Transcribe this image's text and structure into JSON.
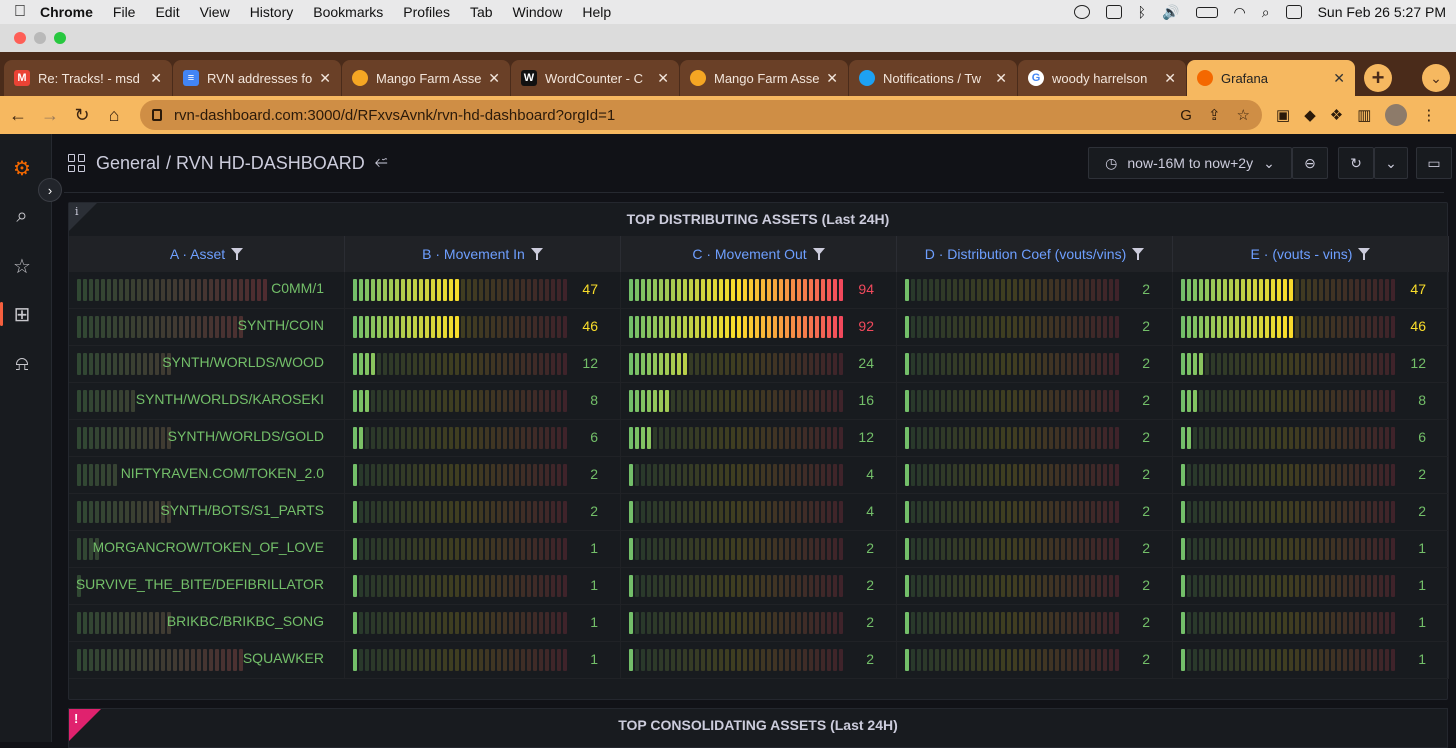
{
  "menubar": {
    "app": "Chrome",
    "items": [
      "File",
      "Edit",
      "View",
      "History",
      "Bookmarks",
      "Profiles",
      "Tab",
      "Window",
      "Help"
    ],
    "datetime": "Sun Feb 26  5:27 PM"
  },
  "tabs": [
    {
      "title": "Re: Tracks! - msd",
      "icon": "gmail-icon",
      "color": "#ea4335"
    },
    {
      "title": "RVN addresses fo",
      "icon": "docs-icon",
      "color": "#4285f4"
    },
    {
      "title": "Mango Farm Asse",
      "icon": "mango-icon",
      "color": "#f5a623"
    },
    {
      "title": "WordCounter - C",
      "icon": "wordcounter-icon",
      "color": "#111111"
    },
    {
      "title": "Mango Farm Asse",
      "icon": "mango-icon",
      "color": "#f5a623"
    },
    {
      "title": "Notifications / Tw",
      "icon": "twitter-icon",
      "color": "#1da1f2"
    },
    {
      "title": "woody harrelson",
      "icon": "google-icon",
      "color": "#ffffff"
    },
    {
      "title": "Grafana",
      "icon": "grafana-icon",
      "color": "#f46800"
    }
  ],
  "address": {
    "url": "rvn-dashboard.com:3000/d/RFxvsAvnk/rvn-hd-dashboard?orgId=1"
  },
  "grafana": {
    "breadcrumb_folder": "General",
    "breadcrumb_dashboard": "/ RVN HD-DASHBOARD",
    "time_range": "now-16M to now+2y",
    "panel1_title": "TOP DISTRIBUTING ASSETS (Last 24H)",
    "panel2_title": "TOP CONSOLIDATING ASSETS (Last 24H)",
    "columns": [
      "A · Asset",
      "B · Movement In",
      "C · Movement Out",
      "D · Distribution Coef (vouts/vins)",
      "E · (vouts - vins)"
    ],
    "colors": {
      "green": "#73bf69",
      "yellow": "#fade2a",
      "red": "#f2495c",
      "link": "#6e9fff"
    },
    "rows": [
      {
        "asset": "C0MM/1",
        "in": "47",
        "out": "94",
        "coef": "2",
        "diff": "47",
        "in_frac": 0.5,
        "out_frac": 1.0,
        "coef_frac": 0.02,
        "diff_frac": 0.52,
        "asset_frac": 0.9
      },
      {
        "asset": "SYNTH/COIN",
        "in": "46",
        "out": "92",
        "coef": "2",
        "diff": "46",
        "in_frac": 0.49,
        "out_frac": 1.0,
        "coef_frac": 0.02,
        "diff_frac": 0.52,
        "asset_frac": 0.78
      },
      {
        "asset": "SYNTH/WORLDS/WOOD",
        "in": "12",
        "out": "24",
        "coef": "2",
        "diff": "12",
        "in_frac": 0.12,
        "out_frac": 0.27,
        "coef_frac": 0.02,
        "diff_frac": 0.12,
        "asset_frac": 0.45
      },
      {
        "asset": "SYNTH/WORLDS/KAROSEKI",
        "in": "8",
        "out": "16",
        "coef": "2",
        "diff": "8",
        "in_frac": 0.08,
        "out_frac": 0.19,
        "coef_frac": 0.02,
        "diff_frac": 0.09,
        "asset_frac": 0.28
      },
      {
        "asset": "SYNTH/WORLDS/GOLD",
        "in": "6",
        "out": "12",
        "coef": "2",
        "diff": "6",
        "in_frac": 0.06,
        "out_frac": 0.12,
        "coef_frac": 0.02,
        "diff_frac": 0.06,
        "asset_frac": 0.45
      },
      {
        "asset": "NIFTYRAVEN.COM/TOKEN_2.0",
        "in": "2",
        "out": "4",
        "coef": "2",
        "diff": "2",
        "in_frac": 0.02,
        "out_frac": 0.02,
        "coef_frac": 0.02,
        "diff_frac": 0.02,
        "asset_frac": 0.2
      },
      {
        "asset": "SYNTH/BOTS/S1_PARTS",
        "in": "2",
        "out": "4",
        "coef": "2",
        "diff": "2",
        "in_frac": 0.02,
        "out_frac": 0.02,
        "coef_frac": 0.02,
        "diff_frac": 0.02,
        "asset_frac": 0.45
      },
      {
        "asset": "MORGANCROW/TOKEN_OF_LOVE",
        "in": "1",
        "out": "2",
        "coef": "2",
        "diff": "1",
        "in_frac": 0.02,
        "out_frac": 0.02,
        "coef_frac": 0.02,
        "diff_frac": 0.02,
        "asset_frac": 0.12
      },
      {
        "asset": "SURVIVE_THE_BITE/DEFIBRILLATOR",
        "in": "1",
        "out": "2",
        "coef": "2",
        "diff": "1",
        "in_frac": 0.02,
        "out_frac": 0.02,
        "coef_frac": 0.02,
        "diff_frac": 0.02,
        "asset_frac": 0.02
      },
      {
        "asset": "BRIKBC/BRIKBC_SONG",
        "in": "1",
        "out": "2",
        "coef": "2",
        "diff": "1",
        "in_frac": 0.02,
        "out_frac": 0.02,
        "coef_frac": 0.02,
        "diff_frac": 0.02,
        "asset_frac": 0.45
      },
      {
        "asset": "SQUAWKER",
        "in": "1",
        "out": "2",
        "coef": "2",
        "diff": "1",
        "in_frac": 0.02,
        "out_frac": 0.02,
        "coef_frac": 0.02,
        "diff_frac": 0.02,
        "asset_frac": 0.78
      }
    ]
  }
}
